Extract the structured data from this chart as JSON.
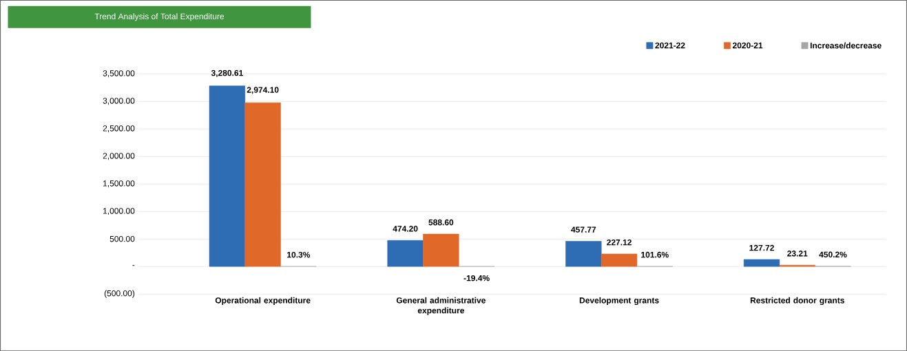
{
  "chart_data": {
    "type": "bar",
    "title": "Trend Analysis of Total Expenditure",
    "categories": [
      "Operational expenditure",
      "General administrative expenditure",
      "Development grants",
      "Restricted donor grants"
    ],
    "series": [
      {
        "name": "2021-22",
        "color": "#2e6db4",
        "values": [
          3280.61,
          474.2,
          457.77,
          127.72
        ],
        "value_labels": [
          "3,280.61",
          "474.20",
          "457.77",
          "127.72"
        ]
      },
      {
        "name": "2020-21",
        "color": "#e0692a",
        "values": [
          2974.1,
          588.6,
          227.12,
          23.21
        ],
        "value_labels": [
          "2,974.10",
          "588.60",
          "227.12",
          "23.21"
        ]
      },
      {
        "name": "Increase/decrease",
        "color": "#a6a6a6",
        "values": [
          0.103,
          -0.194,
          1.016,
          4.502
        ],
        "value_labels": [
          "10.3%",
          "-19.4%",
          "101.6%",
          "450.2%"
        ]
      }
    ],
    "ylim": [
      -500,
      3500
    ],
    "yticks": [
      {
        "value": -500,
        "label": "(500.00)"
      },
      {
        "value": 0,
        "label": "-"
      },
      {
        "value": 500,
        "label": "500.00"
      },
      {
        "value": 1000,
        "label": "1,000.00"
      },
      {
        "value": 1500,
        "label": "1,500.00"
      },
      {
        "value": 2000,
        "label": "2,000.00"
      },
      {
        "value": 2500,
        "label": "2,500.00"
      },
      {
        "value": 3000,
        "label": "3,000.00"
      },
      {
        "value": 3500,
        "label": "3,500.00"
      }
    ],
    "grid": "y",
    "legend": "top right"
  }
}
